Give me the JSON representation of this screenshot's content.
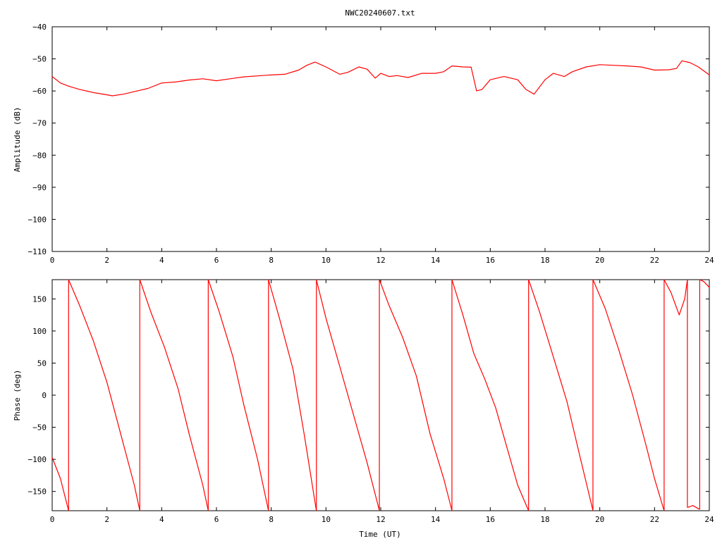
{
  "chart_data": [
    {
      "type": "line",
      "title": "NWC20240607.txt",
      "xlabel": "",
      "ylabel": "Amplitude (dB)",
      "xlim": [
        0,
        24
      ],
      "ylim": [
        -110,
        -40
      ],
      "xticks": [
        0,
        2,
        4,
        6,
        8,
        10,
        12,
        14,
        16,
        18,
        20,
        22,
        24
      ],
      "yticks": [
        -40,
        -50,
        -60,
        -70,
        -80,
        -90,
        -100,
        -110
      ],
      "grid": false,
      "series_color": "#ff0000",
      "series": [
        {
          "x": [
            0,
            0.3,
            0.6,
            1.0,
            1.5,
            2.0,
            2.2,
            2.6,
            3.0,
            3.5,
            4.0,
            4.5,
            5.0,
            5.5,
            6.0,
            6.5,
            7.0,
            7.5,
            8.0,
            8.5,
            9.0,
            9.3,
            9.6,
            10.0,
            10.5,
            10.8,
            11.2,
            11.5,
            11.8,
            12.0,
            12.3,
            12.6,
            13.0,
            13.5,
            14.0,
            14.3,
            14.6,
            15.0,
            15.3,
            15.5,
            15.7,
            16.0,
            16.5,
            17.0,
            17.3,
            17.6,
            18.0,
            18.3,
            18.7,
            19.0,
            19.5,
            20.0,
            20.5,
            21.0,
            21.5,
            22.0,
            22.5,
            22.8,
            23.0,
            23.3,
            23.6,
            24.0
          ],
          "y": [
            -55.5,
            -57.5,
            -58.5,
            -59.5,
            -60.5,
            -61.2,
            -61.5,
            -61,
            -60.2,
            -59.2,
            -57.5,
            -57.2,
            -56.6,
            -56.2,
            -56.8,
            -56.2,
            -55.6,
            -55.3,
            -55,
            -54.8,
            -53.5,
            -52,
            -51,
            -52.5,
            -54.8,
            -54.2,
            -52.5,
            -53.2,
            -56,
            -54.5,
            -55.5,
            -55.2,
            -55.8,
            -54.5,
            -54.5,
            -54,
            -52.2,
            -52.5,
            -52.6,
            -60,
            -59.5,
            -56.5,
            -55.5,
            -56.5,
            -59.5,
            -61,
            -56.5,
            -54.5,
            -55.5,
            -54,
            -52.5,
            -51.8,
            -52,
            -52.2,
            -52.5,
            -53.5,
            -53.4,
            -53,
            -50.6,
            -51.2,
            -52.5,
            -55
          ]
        }
      ]
    },
    {
      "type": "line",
      "title": "",
      "xlabel": "Time (UT)",
      "ylabel": "Phase (deg)",
      "xlim": [
        0,
        24
      ],
      "ylim": [
        -180,
        180
      ],
      "xticks": [
        0,
        2,
        4,
        6,
        8,
        10,
        12,
        14,
        16,
        18,
        20,
        22,
        24
      ],
      "yticks": [
        150,
        100,
        50,
        0,
        -50,
        -100,
        -150
      ],
      "grid": false,
      "series_color": "#ff0000",
      "segments": [
        {
          "x": [
            0,
            0.3,
            0.6
          ],
          "y": [
            -97,
            -130,
            -180
          ]
        },
        {
          "x": [
            0.6,
            1.0,
            1.5,
            2.0,
            2.5,
            3.0,
            3.2
          ],
          "y": [
            180,
            140,
            85,
            20,
            -60,
            -140,
            -180
          ]
        },
        {
          "x": [
            3.2,
            3.6,
            4.1,
            4.6,
            5.0,
            5.5,
            5.7
          ],
          "y": [
            180,
            130,
            75,
            10,
            -60,
            -140,
            -180
          ]
        },
        {
          "x": [
            5.7,
            6.1,
            6.6,
            7.0,
            7.5,
            7.9
          ],
          "y": [
            180,
            130,
            60,
            -15,
            -100,
            -180
          ]
        },
        {
          "x": [
            7.9,
            8.3,
            8.8,
            9.2,
            9.65
          ],
          "y": [
            180,
            120,
            40,
            -60,
            -180
          ]
        },
        {
          "x": [
            9.65,
            10.0,
            10.5,
            11.0,
            11.5,
            11.95
          ],
          "y": [
            180,
            120,
            45,
            -30,
            -105,
            -180
          ]
        },
        {
          "x": [
            11.95,
            12.3,
            12.8,
            13.3,
            13.8,
            14.3,
            14.6
          ],
          "y": [
            180,
            140,
            90,
            30,
            -60,
            -130,
            -180
          ]
        },
        {
          "x": [
            14.6,
            15.0,
            15.4,
            15.8,
            16.2,
            16.6,
            17.0,
            17.4
          ],
          "y": [
            180,
            125,
            65,
            25,
            -20,
            -80,
            -140,
            -180
          ]
        },
        {
          "x": [
            17.4,
            17.8,
            18.3,
            18.8,
            19.3,
            19.75
          ],
          "y": [
            180,
            130,
            60,
            -10,
            -100,
            -180
          ]
        },
        {
          "x": [
            19.75,
            20.2,
            20.7,
            21.2,
            21.7,
            22.0,
            22.35
          ],
          "y": [
            180,
            135,
            70,
            0,
            -80,
            -130,
            -180
          ]
        },
        {
          "x": [
            22.35,
            22.6,
            22.9,
            23.1,
            23.2
          ],
          "y": [
            180,
            160,
            125,
            150,
            180
          ]
        },
        {
          "x": [
            23.2,
            23.4,
            23.65
          ],
          "y": [
            -175,
            -172,
            -178
          ]
        },
        {
          "x": [
            23.65,
            23.8,
            24.0
          ],
          "y": [
            180,
            177,
            168
          ]
        }
      ]
    }
  ]
}
